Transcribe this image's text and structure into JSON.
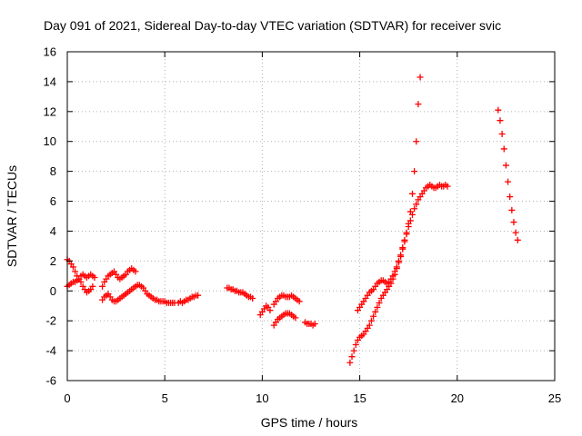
{
  "chart_data": {
    "type": "scatter",
    "title": "Day 091 of 2021, Sidereal Day-to-day VTEC variation (SDTVAR) for receiver svic",
    "xlabel": "GPS time / hours",
    "ylabel": "SDTVAR / TECUs",
    "xlim": [
      0,
      25
    ],
    "ylim": [
      -6,
      16
    ],
    "xticks": [
      0,
      5,
      10,
      15,
      20,
      25
    ],
    "yticks": [
      -6,
      -4,
      -2,
      0,
      2,
      4,
      6,
      8,
      10,
      12,
      14,
      16
    ],
    "grid": true,
    "marker": "+",
    "series": [
      {
        "name": "SDTVAR",
        "color": "#ff0000",
        "points": [
          [
            0.0,
            2.1
          ],
          [
            0.1,
            2.0
          ],
          [
            0.2,
            1.8
          ],
          [
            0.3,
            1.6
          ],
          [
            0.4,
            1.3
          ],
          [
            0.5,
            1.0
          ],
          [
            0.6,
            0.8
          ],
          [
            0.7,
            0.6
          ],
          [
            0.8,
            0.3
          ],
          [
            0.9,
            0.1
          ],
          [
            1.0,
            -0.1
          ],
          [
            1.1,
            0.0
          ],
          [
            1.2,
            0.1
          ],
          [
            1.3,
            0.3
          ],
          [
            0.0,
            0.3
          ],
          [
            0.1,
            0.4
          ],
          [
            0.2,
            0.5
          ],
          [
            0.3,
            0.6
          ],
          [
            0.4,
            0.6
          ],
          [
            0.5,
            0.7
          ],
          [
            0.6,
            0.8
          ],
          [
            0.7,
            1.0
          ],
          [
            0.8,
            1.1
          ],
          [
            0.9,
            1.0
          ],
          [
            1.0,
            0.9
          ],
          [
            1.1,
            1.0
          ],
          [
            1.2,
            1.1
          ],
          [
            1.3,
            1.0
          ],
          [
            1.4,
            0.9
          ],
          [
            1.8,
            -0.6
          ],
          [
            1.9,
            -0.4
          ],
          [
            2.0,
            -0.3
          ],
          [
            2.1,
            -0.2
          ],
          [
            2.2,
            -0.4
          ],
          [
            2.3,
            -0.6
          ],
          [
            2.4,
            -0.7
          ],
          [
            2.5,
            -0.7
          ],
          [
            2.6,
            -0.6
          ],
          [
            2.7,
            -0.5
          ],
          [
            2.8,
            -0.4
          ],
          [
            2.9,
            -0.3
          ],
          [
            3.0,
            -0.2
          ],
          [
            3.1,
            -0.1
          ],
          [
            3.2,
            0.0
          ],
          [
            3.3,
            0.1
          ],
          [
            3.4,
            0.2
          ],
          [
            3.5,
            0.3
          ],
          [
            3.6,
            0.4
          ],
          [
            3.7,
            0.4
          ],
          [
            3.8,
            0.3
          ],
          [
            3.9,
            0.2
          ],
          [
            4.0,
            0.0
          ],
          [
            4.1,
            -0.2
          ],
          [
            4.2,
            -0.3
          ],
          [
            4.3,
            -0.4
          ],
          [
            4.4,
            -0.5
          ],
          [
            4.5,
            -0.6
          ],
          [
            4.6,
            -0.6
          ],
          [
            4.7,
            -0.7
          ],
          [
            4.8,
            -0.7
          ],
          [
            4.9,
            -0.7
          ],
          [
            5.0,
            -0.7
          ],
          [
            5.1,
            -0.8
          ],
          [
            5.2,
            -0.8
          ],
          [
            5.3,
            -0.8
          ],
          [
            5.4,
            -0.8
          ],
          [
            5.5,
            -0.8
          ],
          [
            1.8,
            0.3
          ],
          [
            1.9,
            0.6
          ],
          [
            2.0,
            0.8
          ],
          [
            2.1,
            1.0
          ],
          [
            2.2,
            1.1
          ],
          [
            2.3,
            1.2
          ],
          [
            2.4,
            1.3
          ],
          [
            2.5,
            1.1
          ],
          [
            2.6,
            0.9
          ],
          [
            2.7,
            0.8
          ],
          [
            2.8,
            0.9
          ],
          [
            2.9,
            1.0
          ],
          [
            3.0,
            1.1
          ],
          [
            3.1,
            1.3
          ],
          [
            3.2,
            1.4
          ],
          [
            3.3,
            1.5
          ],
          [
            3.4,
            1.4
          ],
          [
            3.5,
            1.3
          ],
          [
            5.7,
            -0.8
          ],
          [
            5.8,
            -0.7
          ],
          [
            5.9,
            -0.8
          ],
          [
            6.0,
            -0.7
          ],
          [
            6.1,
            -0.6
          ],
          [
            6.2,
            -0.6
          ],
          [
            6.3,
            -0.5
          ],
          [
            6.4,
            -0.4
          ],
          [
            6.5,
            -0.4
          ],
          [
            6.6,
            -0.3
          ],
          [
            6.7,
            -0.3
          ],
          [
            8.2,
            0.2
          ],
          [
            8.3,
            0.2
          ],
          [
            8.4,
            0.1
          ],
          [
            8.5,
            0.1
          ],
          [
            8.6,
            0.0
          ],
          [
            8.7,
            0.0
          ],
          [
            8.8,
            -0.1
          ],
          [
            8.9,
            -0.1
          ],
          [
            9.0,
            -0.1
          ],
          [
            9.1,
            -0.2
          ],
          [
            9.2,
            -0.3
          ],
          [
            9.3,
            -0.4
          ],
          [
            9.4,
            -0.4
          ],
          [
            9.5,
            -0.5
          ],
          [
            9.9,
            -1.6
          ],
          [
            10.0,
            -1.4
          ],
          [
            10.1,
            -1.2
          ],
          [
            10.2,
            -1.0
          ],
          [
            10.3,
            -1.1
          ],
          [
            10.4,
            -1.3
          ],
          [
            10.6,
            -2.3
          ],
          [
            10.7,
            -2.1
          ],
          [
            10.8,
            -1.9
          ],
          [
            10.9,
            -1.8
          ],
          [
            11.0,
            -1.7
          ],
          [
            11.1,
            -1.6
          ],
          [
            11.2,
            -1.5
          ],
          [
            11.3,
            -1.5
          ],
          [
            11.4,
            -1.5
          ],
          [
            11.5,
            -1.6
          ],
          [
            11.6,
            -1.7
          ],
          [
            11.7,
            -1.8
          ],
          [
            10.6,
            -0.9
          ],
          [
            10.7,
            -0.7
          ],
          [
            10.8,
            -0.5
          ],
          [
            10.9,
            -0.4
          ],
          [
            11.0,
            -0.3
          ],
          [
            11.1,
            -0.3
          ],
          [
            11.2,
            -0.4
          ],
          [
            11.3,
            -0.4
          ],
          [
            11.4,
            -0.4
          ],
          [
            11.5,
            -0.3
          ],
          [
            11.6,
            -0.4
          ],
          [
            11.7,
            -0.5
          ],
          [
            11.8,
            -0.6
          ],
          [
            11.9,
            -0.7
          ],
          [
            12.2,
            -2.1
          ],
          [
            12.3,
            -2.2
          ],
          [
            12.4,
            -2.2
          ],
          [
            12.5,
            -2.2
          ],
          [
            12.6,
            -2.3
          ],
          [
            12.7,
            -2.2
          ],
          [
            14.5,
            -4.8
          ],
          [
            14.6,
            -4.4
          ],
          [
            14.7,
            -4.0
          ],
          [
            14.8,
            -3.6
          ],
          [
            14.9,
            -3.3
          ],
          [
            15.0,
            -3.1
          ],
          [
            15.1,
            -3.0
          ],
          [
            15.2,
            -2.9
          ],
          [
            15.3,
            -2.7
          ],
          [
            15.4,
            -2.5
          ],
          [
            15.5,
            -2.3
          ],
          [
            15.6,
            -2.0
          ],
          [
            15.7,
            -1.7
          ],
          [
            15.8,
            -1.4
          ],
          [
            15.9,
            -1.1
          ],
          [
            16.0,
            -0.8
          ],
          [
            16.1,
            -0.5
          ],
          [
            16.2,
            -0.3
          ],
          [
            16.3,
            -0.1
          ],
          [
            16.4,
            0.1
          ],
          [
            16.5,
            0.3
          ],
          [
            16.6,
            0.5
          ],
          [
            16.7,
            0.8
          ],
          [
            16.8,
            1.1
          ],
          [
            16.9,
            1.5
          ],
          [
            17.0,
            1.9
          ],
          [
            17.1,
            2.3
          ],
          [
            17.2,
            2.8
          ],
          [
            17.3,
            3.3
          ],
          [
            17.4,
            3.8
          ],
          [
            17.5,
            4.5
          ],
          [
            17.6,
            5.3
          ],
          [
            17.7,
            6.5
          ],
          [
            17.8,
            8.0
          ],
          [
            17.9,
            10.0
          ],
          [
            18.0,
            12.5
          ],
          [
            18.1,
            14.3
          ],
          [
            14.9,
            -1.3
          ],
          [
            15.0,
            -1.1
          ],
          [
            15.1,
            -0.9
          ],
          [
            15.2,
            -0.7
          ],
          [
            15.3,
            -0.5
          ],
          [
            15.4,
            -0.3
          ],
          [
            15.5,
            -0.1
          ],
          [
            15.6,
            0.0
          ],
          [
            15.7,
            0.1
          ],
          [
            15.8,
            0.3
          ],
          [
            15.9,
            0.5
          ],
          [
            16.0,
            0.6
          ],
          [
            16.1,
            0.7
          ],
          [
            16.2,
            0.7
          ],
          [
            16.3,
            0.6
          ],
          [
            16.4,
            0.5
          ],
          [
            16.5,
            0.6
          ],
          [
            16.6,
            0.8
          ],
          [
            16.7,
            1.0
          ],
          [
            16.8,
            1.3
          ],
          [
            16.9,
            1.6
          ],
          [
            17.0,
            2.0
          ],
          [
            17.1,
            2.4
          ],
          [
            17.2,
            2.9
          ],
          [
            17.3,
            3.4
          ],
          [
            17.4,
            3.9
          ],
          [
            17.5,
            4.3
          ],
          [
            17.6,
            4.7
          ],
          [
            17.7,
            5.1
          ],
          [
            17.8,
            5.5
          ],
          [
            17.9,
            5.8
          ],
          [
            18.0,
            6.1
          ],
          [
            18.1,
            6.3
          ],
          [
            18.2,
            6.5
          ],
          [
            18.3,
            6.7
          ],
          [
            18.4,
            6.9
          ],
          [
            18.5,
            7.0
          ],
          [
            18.6,
            7.1
          ],
          [
            18.7,
            7.0
          ],
          [
            18.8,
            6.9
          ],
          [
            18.9,
            6.9
          ],
          [
            19.0,
            7.0
          ],
          [
            19.1,
            7.1
          ],
          [
            19.2,
            7.0
          ],
          [
            19.3,
            7.0
          ],
          [
            19.4,
            7.1
          ],
          [
            19.5,
            7.0
          ],
          [
            22.1,
            12.1
          ],
          [
            22.2,
            11.4
          ],
          [
            22.3,
            10.5
          ],
          [
            22.4,
            9.5
          ],
          [
            22.5,
            8.4
          ],
          [
            22.6,
            7.3
          ],
          [
            22.7,
            6.3
          ],
          [
            22.8,
            5.4
          ],
          [
            22.9,
            4.6
          ],
          [
            23.0,
            3.9
          ],
          [
            23.1,
            3.4
          ]
        ]
      }
    ]
  }
}
